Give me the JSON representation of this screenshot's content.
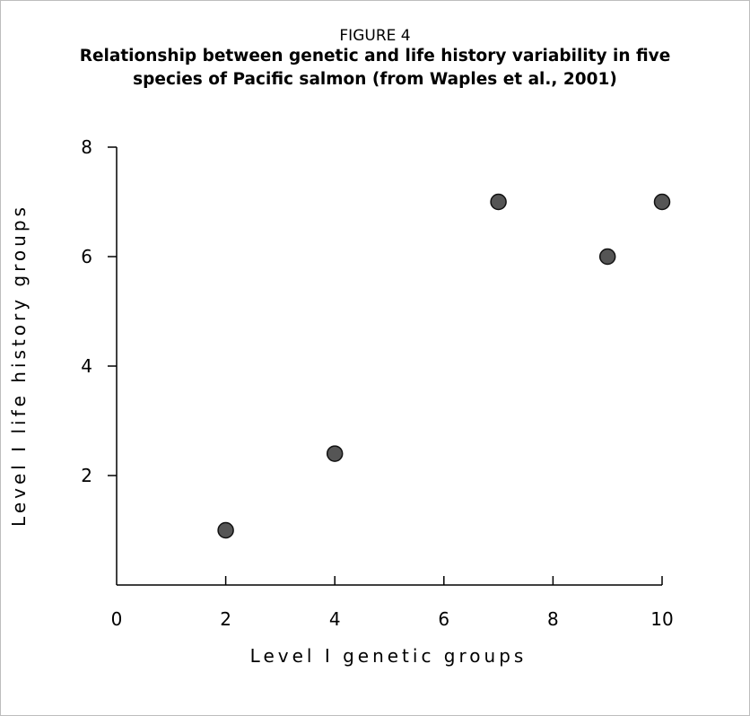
{
  "figure": {
    "label": "FIGURE 4",
    "title_line1": "Relationship between genetic and life history variability in five",
    "title_line2": "species of Pacific salmon (from Waples et al., 2001)"
  },
  "chart_data": {
    "type": "scatter",
    "xlabel": "Level I genetic groups",
    "ylabel": "Level I life history groups",
    "xlim": [
      0,
      10
    ],
    "ylim": [
      0,
      8
    ],
    "x_ticks": [
      0,
      2,
      4,
      6,
      8,
      10
    ],
    "y_ticks": [
      2,
      4,
      6,
      8
    ],
    "grid": false,
    "points": [
      {
        "x": 2,
        "y": 1
      },
      {
        "x": 4,
        "y": 2.4
      },
      {
        "x": 7,
        "y": 7
      },
      {
        "x": 9,
        "y": 6
      },
      {
        "x": 10,
        "y": 7
      }
    ],
    "marker_color": "#555555",
    "marker_edge": "#111111"
  }
}
